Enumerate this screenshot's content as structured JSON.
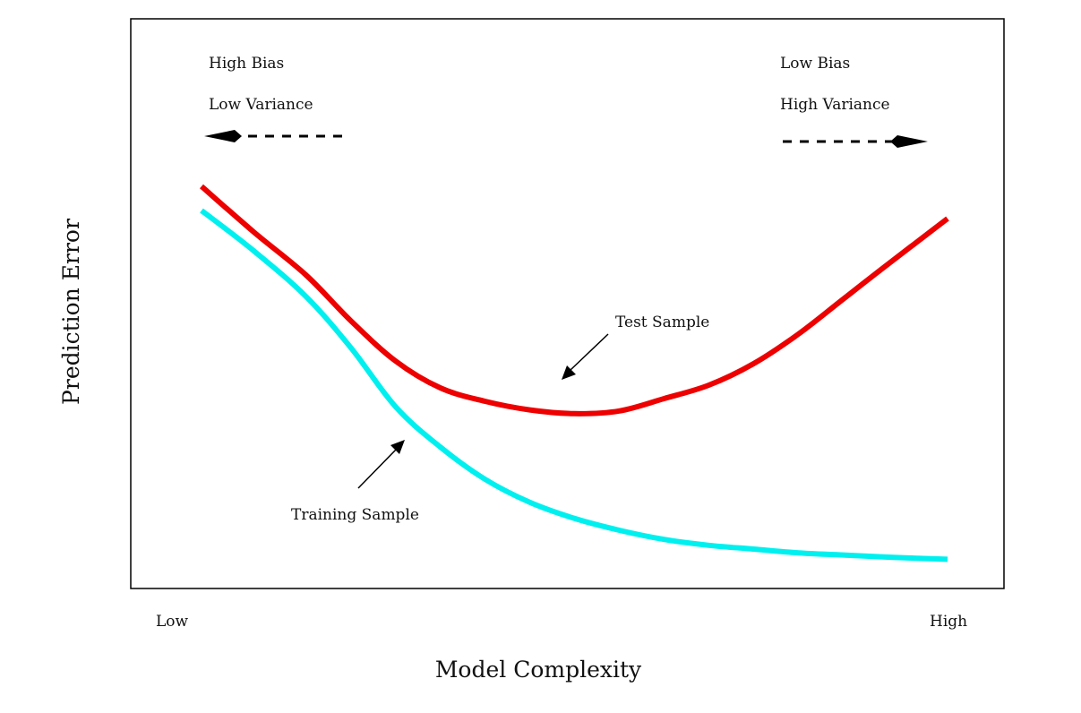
{
  "chart_data": {
    "type": "line",
    "title": "",
    "xlabel": "Model Complexity",
    "ylabel": "Prediction Error",
    "x_tick_labels": [
      "Low",
      "High"
    ],
    "xlim": [
      0,
      1
    ],
    "ylim": [
      0,
      1
    ],
    "grid": false,
    "series": [
      {
        "name": "Test Sample",
        "color": "#ee0000",
        "x": [
          0,
          0.07,
          0.14,
          0.2,
          0.26,
          0.32,
          0.38,
          0.44,
          0.5,
          0.56,
          0.62,
          0.68,
          0.74,
          0.8,
          0.86,
          0.92,
          1.0
        ],
        "y": [
          0.72,
          0.635,
          0.555,
          0.47,
          0.395,
          0.345,
          0.32,
          0.304,
          0.297,
          0.302,
          0.325,
          0.35,
          0.39,
          0.445,
          0.51,
          0.575,
          0.66
        ]
      },
      {
        "name": "Training Sample",
        "color": "#00f0f0",
        "x": [
          0,
          0.07,
          0.14,
          0.2,
          0.26,
          0.32,
          0.38,
          0.44,
          0.5,
          0.56,
          0.62,
          0.68,
          0.74,
          0.8,
          0.86,
          0.92,
          1.0
        ],
        "y": [
          0.675,
          0.6,
          0.515,
          0.42,
          0.31,
          0.235,
          0.175,
          0.132,
          0.102,
          0.08,
          0.063,
          0.052,
          0.045,
          0.038,
          0.034,
          0.03,
          0.026
        ]
      }
    ],
    "annotations": {
      "left_bias": "High Bias",
      "left_variance": "Low Variance",
      "right_bias": "Low Bias",
      "right_variance": "High Variance",
      "test_label": "Test Sample",
      "train_label": "Training Sample"
    }
  }
}
